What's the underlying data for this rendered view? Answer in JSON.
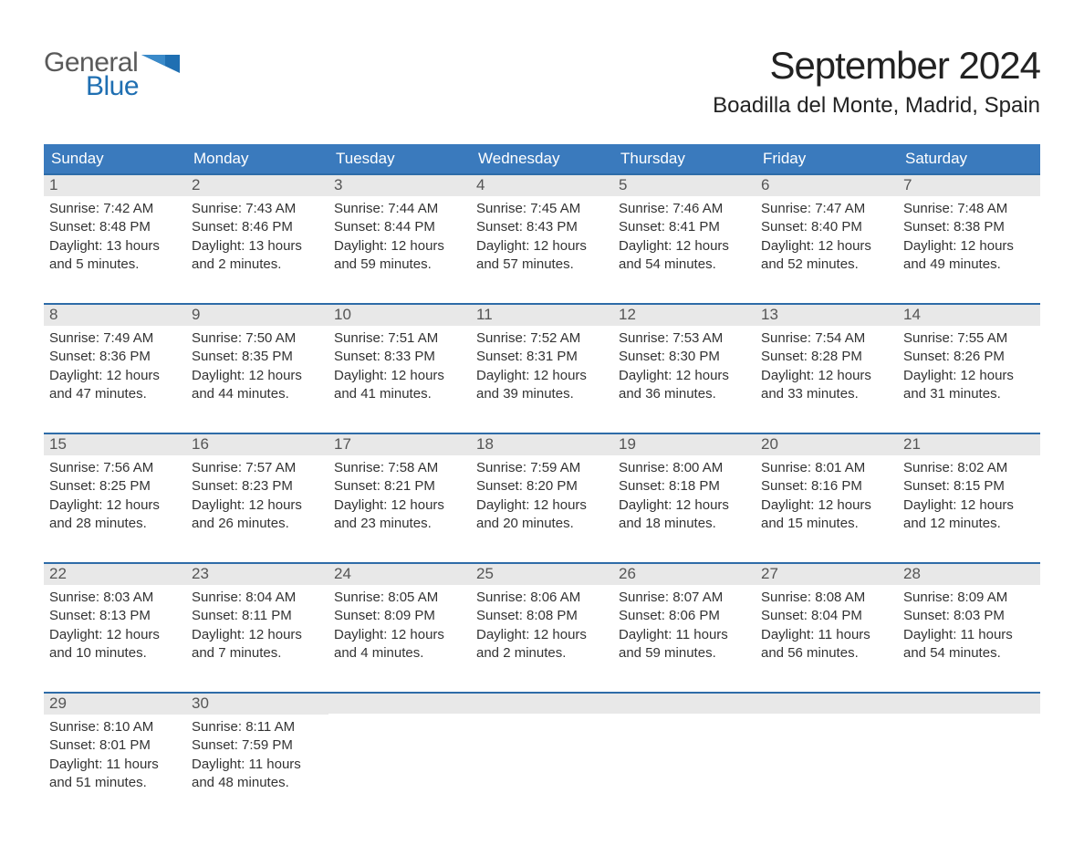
{
  "logo": {
    "word1": "General",
    "word2": "Blue"
  },
  "title": "September 2024",
  "location": "Boadilla del Monte, Madrid, Spain",
  "colors": {
    "header_blue": "#3a7abd",
    "accent_blue": "#2e6ca8",
    "datebar_gray": "#e8e8e8",
    "logo_gray": "#5a5a5a",
    "logo_blue": "#1f6fb2",
    "background": "#ffffff"
  },
  "typography": {
    "title_fontsize": 42,
    "location_fontsize": 24,
    "dow_fontsize": 17,
    "date_fontsize": 17,
    "body_fontsize": 15
  },
  "days_of_week": [
    "Sunday",
    "Monday",
    "Tuesday",
    "Wednesday",
    "Thursday",
    "Friday",
    "Saturday"
  ],
  "labels": {
    "sunrise": "Sunrise: ",
    "sunset": "Sunset: ",
    "daylight": "Daylight: "
  },
  "weeks": [
    [
      {
        "date": "1",
        "sunrise": "7:42 AM",
        "sunset": "8:48 PM",
        "daylight1": "13 hours",
        "daylight2": "and 5 minutes."
      },
      {
        "date": "2",
        "sunrise": "7:43 AM",
        "sunset": "8:46 PM",
        "daylight1": "13 hours",
        "daylight2": "and 2 minutes."
      },
      {
        "date": "3",
        "sunrise": "7:44 AM",
        "sunset": "8:44 PM",
        "daylight1": "12 hours",
        "daylight2": "and 59 minutes."
      },
      {
        "date": "4",
        "sunrise": "7:45 AM",
        "sunset": "8:43 PM",
        "daylight1": "12 hours",
        "daylight2": "and 57 minutes."
      },
      {
        "date": "5",
        "sunrise": "7:46 AM",
        "sunset": "8:41 PM",
        "daylight1": "12 hours",
        "daylight2": "and 54 minutes."
      },
      {
        "date": "6",
        "sunrise": "7:47 AM",
        "sunset": "8:40 PM",
        "daylight1": "12 hours",
        "daylight2": "and 52 minutes."
      },
      {
        "date": "7",
        "sunrise": "7:48 AM",
        "sunset": "8:38 PM",
        "daylight1": "12 hours",
        "daylight2": "and 49 minutes."
      }
    ],
    [
      {
        "date": "8",
        "sunrise": "7:49 AM",
        "sunset": "8:36 PM",
        "daylight1": "12 hours",
        "daylight2": "and 47 minutes."
      },
      {
        "date": "9",
        "sunrise": "7:50 AM",
        "sunset": "8:35 PM",
        "daylight1": "12 hours",
        "daylight2": "and 44 minutes."
      },
      {
        "date": "10",
        "sunrise": "7:51 AM",
        "sunset": "8:33 PM",
        "daylight1": "12 hours",
        "daylight2": "and 41 minutes."
      },
      {
        "date": "11",
        "sunrise": "7:52 AM",
        "sunset": "8:31 PM",
        "daylight1": "12 hours",
        "daylight2": "and 39 minutes."
      },
      {
        "date": "12",
        "sunrise": "7:53 AM",
        "sunset": "8:30 PM",
        "daylight1": "12 hours",
        "daylight2": "and 36 minutes."
      },
      {
        "date": "13",
        "sunrise": "7:54 AM",
        "sunset": "8:28 PM",
        "daylight1": "12 hours",
        "daylight2": "and 33 minutes."
      },
      {
        "date": "14",
        "sunrise": "7:55 AM",
        "sunset": "8:26 PM",
        "daylight1": "12 hours",
        "daylight2": "and 31 minutes."
      }
    ],
    [
      {
        "date": "15",
        "sunrise": "7:56 AM",
        "sunset": "8:25 PM",
        "daylight1": "12 hours",
        "daylight2": "and 28 minutes."
      },
      {
        "date": "16",
        "sunrise": "7:57 AM",
        "sunset": "8:23 PM",
        "daylight1": "12 hours",
        "daylight2": "and 26 minutes."
      },
      {
        "date": "17",
        "sunrise": "7:58 AM",
        "sunset": "8:21 PM",
        "daylight1": "12 hours",
        "daylight2": "and 23 minutes."
      },
      {
        "date": "18",
        "sunrise": "7:59 AM",
        "sunset": "8:20 PM",
        "daylight1": "12 hours",
        "daylight2": "and 20 minutes."
      },
      {
        "date": "19",
        "sunrise": "8:00 AM",
        "sunset": "8:18 PM",
        "daylight1": "12 hours",
        "daylight2": "and 18 minutes."
      },
      {
        "date": "20",
        "sunrise": "8:01 AM",
        "sunset": "8:16 PM",
        "daylight1": "12 hours",
        "daylight2": "and 15 minutes."
      },
      {
        "date": "21",
        "sunrise": "8:02 AM",
        "sunset": "8:15 PM",
        "daylight1": "12 hours",
        "daylight2": "and 12 minutes."
      }
    ],
    [
      {
        "date": "22",
        "sunrise": "8:03 AM",
        "sunset": "8:13 PM",
        "daylight1": "12 hours",
        "daylight2": "and 10 minutes."
      },
      {
        "date": "23",
        "sunrise": "8:04 AM",
        "sunset": "8:11 PM",
        "daylight1": "12 hours",
        "daylight2": "and 7 minutes."
      },
      {
        "date": "24",
        "sunrise": "8:05 AM",
        "sunset": "8:09 PM",
        "daylight1": "12 hours",
        "daylight2": "and 4 minutes."
      },
      {
        "date": "25",
        "sunrise": "8:06 AM",
        "sunset": "8:08 PM",
        "daylight1": "12 hours",
        "daylight2": "and 2 minutes."
      },
      {
        "date": "26",
        "sunrise": "8:07 AM",
        "sunset": "8:06 PM",
        "daylight1": "11 hours",
        "daylight2": "and 59 minutes."
      },
      {
        "date": "27",
        "sunrise": "8:08 AM",
        "sunset": "8:04 PM",
        "daylight1": "11 hours",
        "daylight2": "and 56 minutes."
      },
      {
        "date": "28",
        "sunrise": "8:09 AM",
        "sunset": "8:03 PM",
        "daylight1": "11 hours",
        "daylight2": "and 54 minutes."
      }
    ],
    [
      {
        "date": "29",
        "sunrise": "8:10 AM",
        "sunset": "8:01 PM",
        "daylight1": "11 hours",
        "daylight2": "and 51 minutes."
      },
      {
        "date": "30",
        "sunrise": "8:11 AM",
        "sunset": "7:59 PM",
        "daylight1": "11 hours",
        "daylight2": "and 48 minutes."
      },
      {
        "empty": true
      },
      {
        "empty": true
      },
      {
        "empty": true
      },
      {
        "empty": true
      },
      {
        "empty": true
      }
    ]
  ]
}
